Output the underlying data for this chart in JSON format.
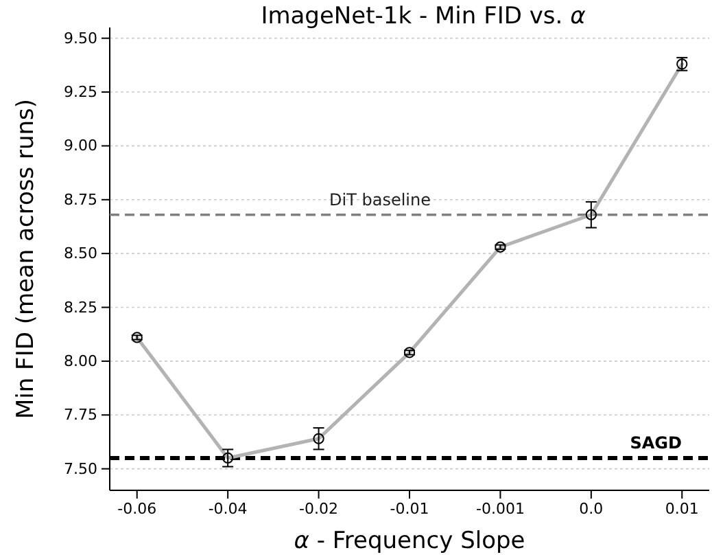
{
  "chart_data": {
    "type": "line",
    "title": "ImageNet-1k - Min FID vs. α",
    "xlabel": "α - Frequency Slope",
    "ylabel": "Min FID (mean across runs)",
    "categories": [
      "-0.06",
      "-0.04",
      "-0.02",
      "-0.01",
      "-0.001",
      "0.0",
      "0.01"
    ],
    "series": [
      {
        "color": "#b3b3b3",
        "values": [
          8.11,
          7.55,
          7.64,
          8.04,
          8.53,
          8.68,
          9.38
        ],
        "errors": [
          0.01,
          0.04,
          0.05,
          0.01,
          0.01,
          0.06,
          0.03
        ]
      }
    ],
    "ylim": [
      7.4,
      9.55
    ],
    "yticks": [
      {
        "value": 7.5,
        "label": "7.50"
      },
      {
        "value": 7.75,
        "label": "7.75"
      },
      {
        "value": 8.0,
        "label": "8.00"
      },
      {
        "value": 8.25,
        "label": "8.25"
      },
      {
        "value": 8.5,
        "label": "8.50"
      },
      {
        "value": 8.75,
        "label": "8.75"
      },
      {
        "value": 9.0,
        "label": "9.00"
      },
      {
        "value": 9.25,
        "label": "9.25"
      },
      {
        "value": 9.5,
        "label": "9.50"
      }
    ],
    "grid": "y",
    "marker": "circle",
    "ref_lines": [
      {
        "axis": "y",
        "value": 8.68,
        "label": "DiT baseline",
        "color": "#808080",
        "line_style": "dashed"
      },
      {
        "axis": "y",
        "value": 7.55,
        "label": "SAGD",
        "color": "#000000",
        "line_style": "dashed"
      }
    ]
  }
}
